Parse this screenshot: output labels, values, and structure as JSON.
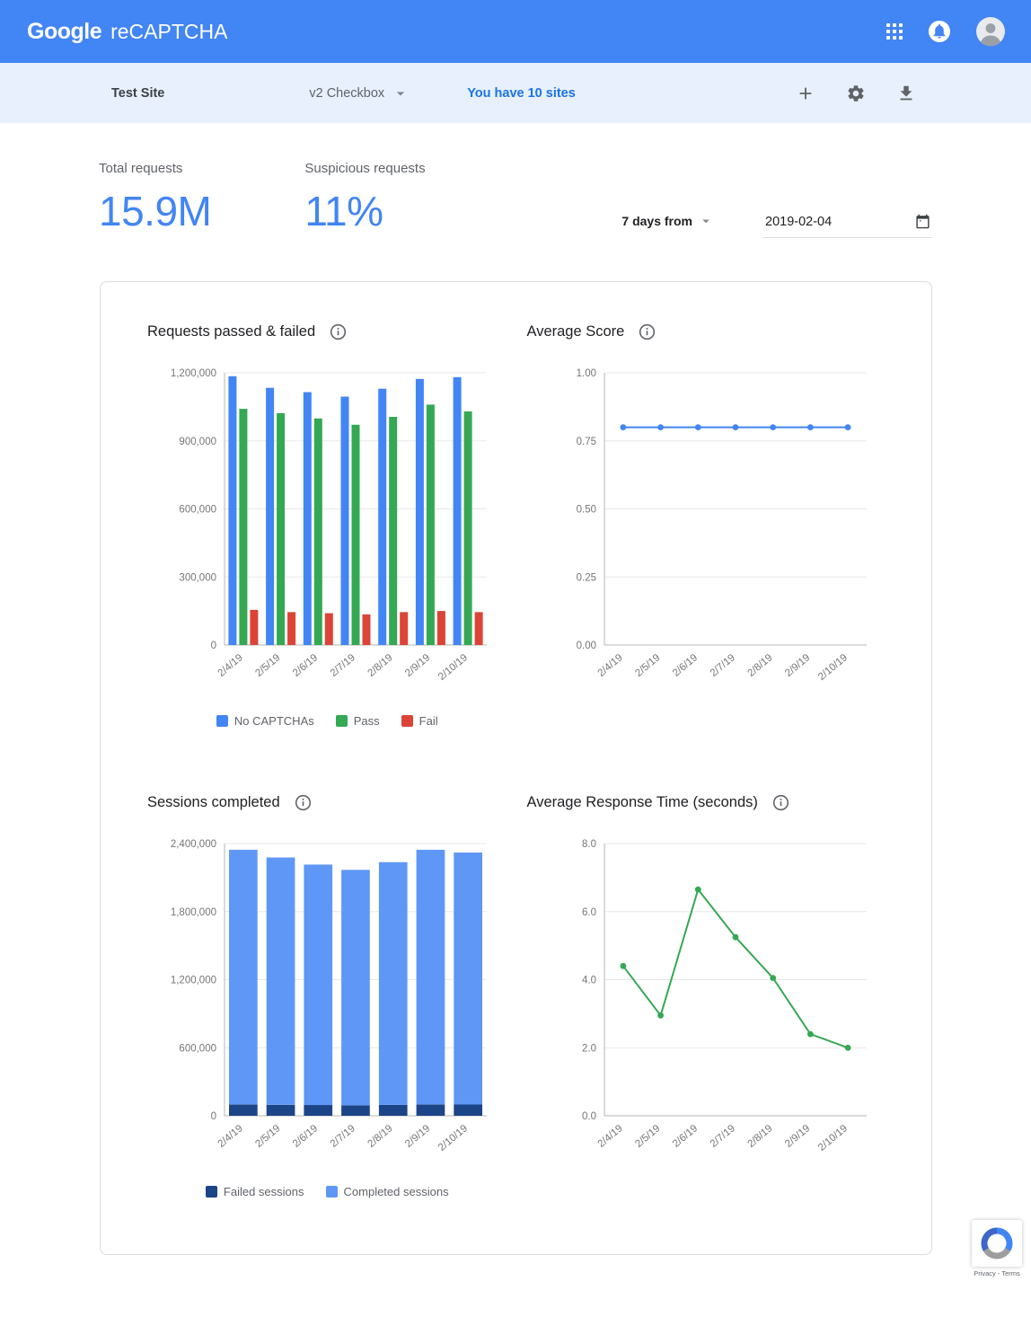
{
  "header": {
    "brand_google": "Google",
    "brand_product": "reCAPTCHA"
  },
  "toolbar": {
    "site_name": "Test Site",
    "site_type": "v2 Checkbox",
    "sites_link": "You have 10 sites"
  },
  "stats": {
    "total_requests": {
      "label": "Total requests",
      "value": "15.9M"
    },
    "suspicious_requests": {
      "label": "Suspicious requests",
      "value": "11%"
    },
    "period_selector": "7 days from",
    "date": "2019-02-04"
  },
  "colors": {
    "header_blue": "#4285f4",
    "toolbar_bg": "#e8f0fe",
    "link_blue": "#1a73e8",
    "stat_blue": "#4285f4"
  },
  "chart_data": [
    {
      "id": "requests-passed-failed",
      "type": "bar",
      "title": "Requests passed & failed",
      "legend": true,
      "categories": [
        "2/4/19",
        "2/5/19",
        "2/6/19",
        "2/7/19",
        "2/8/19",
        "2/9/19",
        "2/10/19"
      ],
      "series": [
        {
          "name": "No CAPTCHAs",
          "color": "#4285f4",
          "values": [
            1185000,
            1134000,
            1115000,
            1095000,
            1130000,
            1173000,
            1181000
          ]
        },
        {
          "name": "Pass",
          "color": "#34a853",
          "values": [
            1041000,
            1022000,
            999000,
            971000,
            1006000,
            1060000,
            1030000
          ]
        },
        {
          "name": "Fail",
          "color": "#db4437",
          "values": [
            155000,
            145000,
            140000,
            135000,
            145000,
            150000,
            145000
          ]
        }
      ],
      "ylim": [
        0,
        1200000
      ],
      "yticks": [
        0,
        300000,
        600000,
        900000,
        1200000
      ],
      "ytick_labels": [
        "0",
        "300,000",
        "600,000",
        "900,000",
        "1,200,000"
      ]
    },
    {
      "id": "average-score",
      "type": "line",
      "title": "Average Score",
      "legend": false,
      "categories": [
        "2/4/19",
        "2/5/19",
        "2/6/19",
        "2/7/19",
        "2/8/19",
        "2/9/19",
        "2/10/19"
      ],
      "series": [
        {
          "color": "#4285f4",
          "values": [
            0.8,
            0.8,
            0.8,
            0.8,
            0.8,
            0.8,
            0.8
          ]
        }
      ],
      "ylim": [
        0,
        1
      ],
      "yticks": [
        0,
        0.25,
        0.5,
        0.75,
        1
      ],
      "ytick_labels": [
        "0.00",
        "0.25",
        "0.50",
        "0.75",
        "1.00"
      ]
    },
    {
      "id": "sessions-completed",
      "type": "stacked-bar",
      "title": "Sessions completed",
      "legend": true,
      "categories": [
        "2/4/19",
        "2/5/19",
        "2/6/19",
        "2/7/19",
        "2/8/19",
        "2/9/19",
        "2/10/19"
      ],
      "series": [
        {
          "name": "Failed sessions",
          "color": "#1c4587",
          "values": [
            100000,
            97000,
            95000,
            93000,
            96000,
            100000,
            99000
          ]
        },
        {
          "name": "Completed sessions",
          "color": "#5e97f6",
          "values": [
            2245000,
            2180000,
            2120000,
            2075000,
            2140000,
            2245000,
            2222000
          ]
        }
      ],
      "ylim": [
        0,
        2400000
      ],
      "yticks": [
        0,
        600000,
        1200000,
        1800000,
        2400000
      ],
      "ytick_labels": [
        "0",
        "600,000",
        "1,200,000",
        "1,800,000",
        "2,400,000"
      ]
    },
    {
      "id": "average-response-time",
      "type": "line",
      "title": "Average Response Time (seconds)",
      "legend": false,
      "categories": [
        "2/4/19",
        "2/5/19",
        "2/6/19",
        "2/7/19",
        "2/8/19",
        "2/9/19",
        "2/10/19"
      ],
      "series": [
        {
          "color": "#34a853",
          "values": [
            4.4,
            2.95,
            6.65,
            5.25,
            4.05,
            2.4,
            2.0
          ]
        }
      ],
      "ylim": [
        0,
        8
      ],
      "yticks": [
        0,
        2,
        4,
        6,
        8
      ],
      "ytick_labels": [
        "0.0",
        "2.0",
        "4.0",
        "6.0",
        "8.0"
      ]
    }
  ],
  "badge": {
    "label": "Privacy - Terms"
  }
}
